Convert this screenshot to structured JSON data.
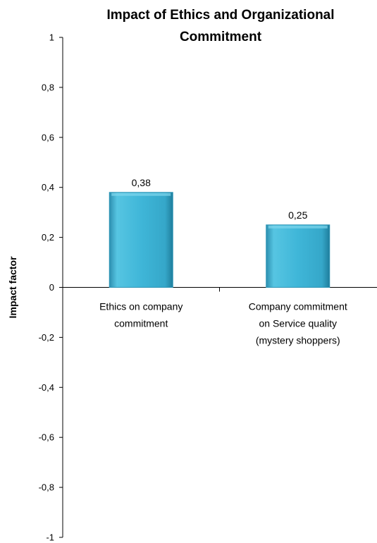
{
  "chart_data": {
    "type": "bar",
    "title": [
      "Impact of Ethics and Organizational",
      "Commitment"
    ],
    "ylabel": "Impact factor",
    "xlabel": "",
    "ylim": [
      -1,
      1
    ],
    "yticks": [
      {
        "value": 1,
        "label": "1"
      },
      {
        "value": 0.8,
        "label": "0,8"
      },
      {
        "value": 0.6,
        "label": "0,6"
      },
      {
        "value": 0.4,
        "label": "0,4"
      },
      {
        "value": 0.2,
        "label": "0,2"
      },
      {
        "value": 0,
        "label": "0"
      },
      {
        "value": -0.2,
        "label": "-0,2"
      },
      {
        "value": -0.4,
        "label": "-0,4"
      },
      {
        "value": -0.6,
        "label": "-0,6"
      },
      {
        "value": -0.8,
        "label": "-0,8"
      },
      {
        "value": -1,
        "label": "-1"
      }
    ],
    "categories": [
      [
        "Ethics on company",
        "commitment"
      ],
      [
        "Company commitment",
        "on Service quality",
        "(mystery shoppers)"
      ]
    ],
    "values": [
      0.38,
      0.25
    ],
    "data_labels": [
      "0,38",
      "0,25"
    ],
    "bar_color": "#4bb8d6",
    "grid": false,
    "legend": "none"
  }
}
